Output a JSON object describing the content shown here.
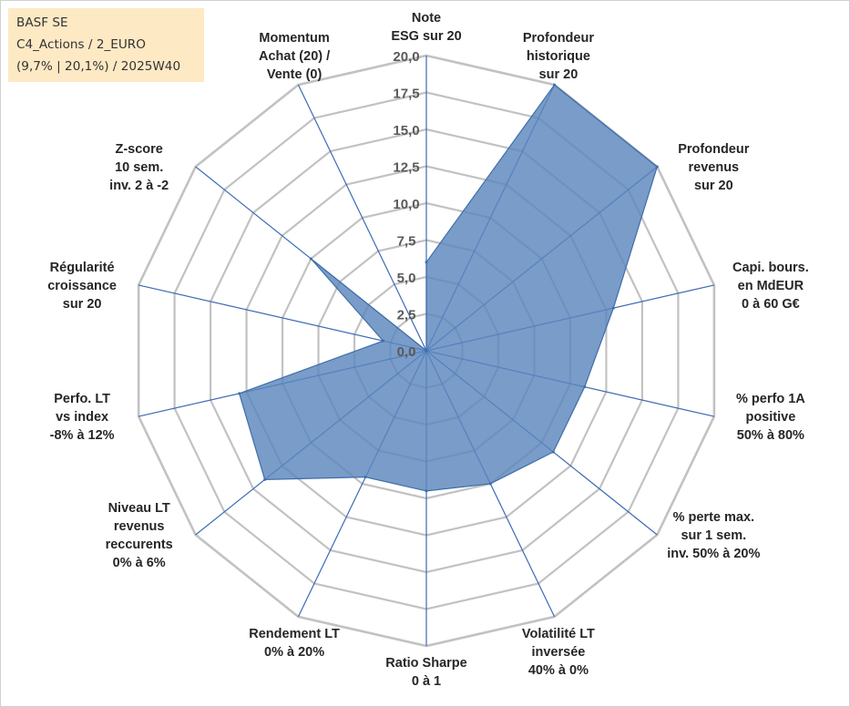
{
  "info": {
    "name": "BASF SE",
    "category": "C4_Actions / 2_EURO",
    "period": "(9,7% | 20,1%) / 2025W40"
  },
  "colors": {
    "fill": "#5b86bd",
    "stroke": "#3e6ea8",
    "grid": "#c2c2c2",
    "spoke": "#3c6bb5",
    "info_bg": "#fde9c4"
  },
  "chart_data": {
    "type": "radar",
    "title": "",
    "rmin": 0,
    "rmax": 20,
    "tick_labels": [
      "0,0",
      "2,5",
      "5,0",
      "7,5",
      "10,0",
      "12,5",
      "15,0",
      "17,5",
      "20,0"
    ],
    "categories": [
      {
        "lines": [
          "Note",
          "ESG sur 20"
        ],
        "value": 6.0
      },
      {
        "lines": [
          "Profondeur",
          "historique",
          "sur 20"
        ],
        "value": 20.0
      },
      {
        "lines": [
          "Profondeur",
          "revenus",
          "sur 20"
        ],
        "value": 20.0
      },
      {
        "lines": [
          "Capi. bours.",
          "en MdEUR",
          "0 à 60 G€"
        ],
        "value": 13.0
      },
      {
        "lines": [
          "% perfo 1A",
          "positive",
          "50% à 80%"
        ],
        "value": 11.0
      },
      {
        "lines": [
          "% perte max.",
          "sur 1 sem.",
          "inv. 50% à 20%"
        ],
        "value": 11.0
      },
      {
        "lines": [
          "Volatilité LT",
          "inversée",
          "40% à 0%"
        ],
        "value": 10.0
      },
      {
        "lines": [
          "Ratio Sharpe",
          "0 à 1"
        ],
        "value": 9.5
      },
      {
        "lines": [
          "Rendement LT",
          "0% à 20%"
        ],
        "value": 9.5
      },
      {
        "lines": [
          "Niveau LT",
          "revenus",
          "reccurents",
          "0% à 6%"
        ],
        "value": 14.0
      },
      {
        "lines": [
          "Perfo. LT",
          "vs index",
          "-8% à 12%"
        ],
        "value": 13.0
      },
      {
        "lines": [
          "Régularité",
          "croissance",
          "sur 20"
        ],
        "value": 3.0
      },
      {
        "lines": [
          "Z-score",
          "10 sem.",
          "inv. 2 à -2"
        ],
        "value": 10.0
      },
      {
        "lines": [
          "Momentum",
          "Achat (20) /",
          "Vente (0)"
        ],
        "value": 0.0
      }
    ]
  }
}
